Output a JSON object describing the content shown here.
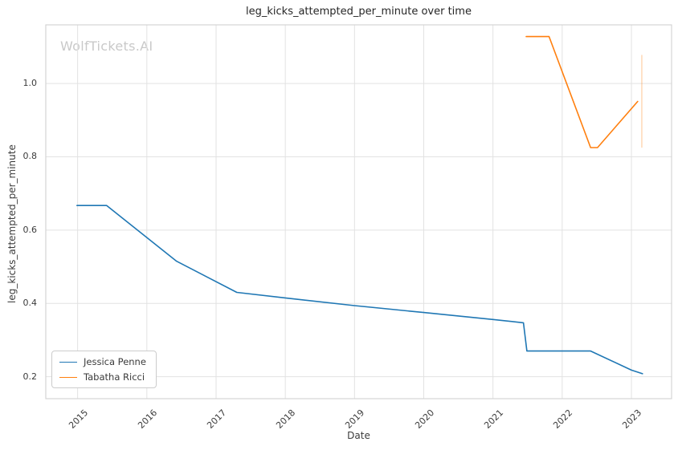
{
  "watermark": "WolfTickets.AI",
  "title": "leg_kicks_attempted_per_minute over time",
  "colors": {
    "grid": "#e2e2e2",
    "plot_border": "#d4d4d4",
    "series_blue": "#1f77b4",
    "series_orange": "#ff7f0e",
    "watermark": "#c9c9c9"
  },
  "chart_data": {
    "type": "line",
    "title": "leg_kicks_attempted_per_minute over time",
    "xlabel": "Date",
    "ylabel": "leg_kicks_attempted_per_minute",
    "xlim": [
      2014.54,
      2023.58
    ],
    "ylim": [
      0.14,
      1.16
    ],
    "x_ticks": [
      2015,
      2016,
      2017,
      2018,
      2019,
      2020,
      2021,
      2022,
      2023
    ],
    "y_ticks": [
      0.2,
      0.4,
      0.6,
      0.8,
      1.0
    ],
    "grid": true,
    "legend_position": "lower left",
    "series": [
      {
        "name": "Jessica Penne",
        "color": "#1f77b4",
        "points": [
          [
            2014.99,
            0.667
          ],
          [
            2015.42,
            0.667
          ],
          [
            2016.43,
            0.515
          ],
          [
            2017.3,
            0.43
          ],
          [
            2018.0,
            0.415
          ],
          [
            2019.0,
            0.394
          ],
          [
            2020.0,
            0.375
          ],
          [
            2021.0,
            0.356
          ],
          [
            2021.44,
            0.347
          ],
          [
            2021.49,
            0.27
          ],
          [
            2022.41,
            0.27
          ],
          [
            2023.0,
            0.218
          ],
          [
            2023.16,
            0.208
          ]
        ]
      },
      {
        "name": "Tabatha Ricci",
        "color": "#ff7f0e",
        "points": [
          [
            2021.48,
            1.128
          ],
          [
            2021.81,
            1.128
          ],
          [
            2022.41,
            0.825
          ],
          [
            2022.51,
            0.825
          ],
          [
            2023.09,
            0.951
          ]
        ]
      }
    ],
    "annotations": [
      {
        "type": "vline-segment",
        "x": 2023.15,
        "y1": 0.825,
        "y2": 1.078,
        "color": "#ff7f0e",
        "opacity": 0.3
      }
    ]
  },
  "legend": {
    "items": [
      {
        "label": "Jessica Penne",
        "color": "#1f77b4"
      },
      {
        "label": "Tabatha Ricci",
        "color": "#ff7f0e"
      }
    ]
  }
}
